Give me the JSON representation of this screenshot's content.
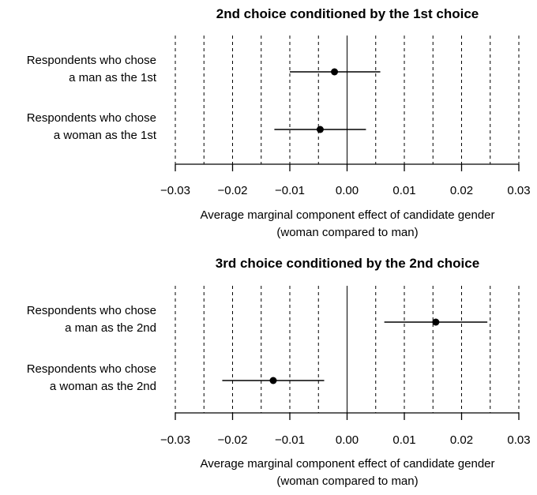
{
  "chart_data": [
    {
      "type": "scatter",
      "title": "2nd choice conditioned by the 1st choice",
      "categories": [
        [
          "Respondents who chose",
          "a man as the 1st"
        ],
        [
          "Respondents who chose",
          "a woman as the 1st"
        ]
      ],
      "estimates": [
        -0.0022,
        -0.0047
      ],
      "ci_low": [
        -0.01,
        -0.0127
      ],
      "ci_high": [
        0.0058,
        0.0033
      ],
      "xlim": [
        -0.03,
        0.03
      ],
      "xticks": [
        -0.03,
        -0.02,
        -0.01,
        0.0,
        0.01,
        0.02,
        0.03
      ],
      "xtick_labels": [
        "−0.03",
        "−0.02",
        "−0.01",
        "0.00",
        "0.01",
        "0.02",
        "0.03"
      ],
      "xlabel": [
        "Average marginal component effect of candidate gender",
        "(woman compared to man)"
      ],
      "grid_dashed_at": [
        -0.03,
        -0.025,
        -0.02,
        -0.015,
        -0.01,
        -0.005,
        0.005,
        0.01,
        0.015,
        0.02,
        0.025,
        0.03
      ],
      "zero_line": 0
    },
    {
      "type": "scatter",
      "title": "3rd choice conditioned by the 2nd choice",
      "categories": [
        [
          "Respondents who chose",
          "a man as the 2nd"
        ],
        [
          "Respondents who chose",
          "a woman as the 2nd"
        ]
      ],
      "estimates": [
        0.0155,
        -0.0129
      ],
      "ci_low": [
        0.0065,
        -0.0218
      ],
      "ci_high": [
        0.0245,
        -0.004
      ],
      "xlim": [
        -0.03,
        0.03
      ],
      "xticks": [
        -0.03,
        -0.02,
        -0.01,
        0.0,
        0.01,
        0.02,
        0.03
      ],
      "xtick_labels": [
        "−0.03",
        "−0.02",
        "−0.01",
        "0.00",
        "0.01",
        "0.02",
        "0.03"
      ],
      "xlabel": [
        "Average marginal component effect of candidate gender",
        "(woman compared to man)"
      ],
      "grid_dashed_at": [
        -0.03,
        -0.025,
        -0.02,
        -0.015,
        -0.01,
        -0.005,
        0.005,
        0.01,
        0.015,
        0.02,
        0.025,
        0.03
      ],
      "zero_line": 0
    }
  ]
}
